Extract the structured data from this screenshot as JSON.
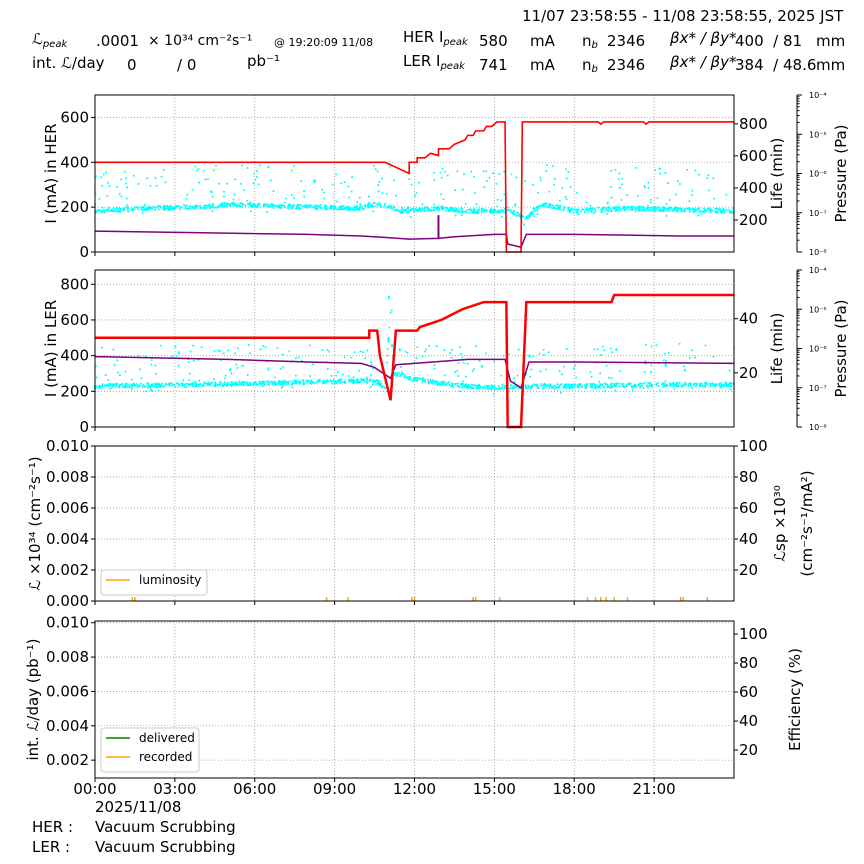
{
  "header": {
    "range": "11/07 23:58:55 - 11/08 23:58:55, 2025 JST",
    "lpeak_label": "ℒ",
    "lpeak_sub": "peak",
    "lpeak_value": ".0001",
    "lpeak_unit": "× 10³⁴ cm⁻²s⁻¹",
    "lpeak_time": "@ 19:20:09 11/08",
    "intl_label": "int. ℒ/day",
    "intl_value1": "0",
    "intl_value2": "/ 0",
    "intl_unit": "pb⁻¹",
    "her": {
      "label": "HER I",
      "sub": "peak",
      "current": "580",
      "unit": "mA",
      "nb_label": "n",
      "nb_sub": "b",
      "nb": "2346",
      "beta_label": "βx* / βy*",
      "beta": "400  / 81",
      "beta_unit": "mm"
    },
    "ler": {
      "label": "LER I",
      "sub": "peak",
      "current": "741",
      "unit": "mA",
      "nb_label": "n",
      "nb_sub": "b",
      "nb": "2346",
      "beta_label": "βx* / βy*",
      "beta": "384  / 48.6",
      "beta_unit": "mm"
    }
  },
  "footer": {
    "date": "2025/11/08",
    "her_label": "HER :",
    "her_status": "Vacuum Scrubbing",
    "ler_label": "LER :",
    "ler_status": "Vacuum Scrubbing"
  },
  "colors": {
    "current": "#ff0000",
    "life": "#800080",
    "pressure": "#00ffff",
    "lum": "#ffa500",
    "delivered": "#008000"
  },
  "chart_data": [
    {
      "type": "line",
      "name": "her",
      "ylabel": "I (mA) in HER",
      "ylim": [
        0,
        700
      ],
      "yticks": [
        0,
        200,
        400,
        600
      ],
      "y2label": "Life (min)",
      "y2lim": [
        0,
        980
      ],
      "y2ticks": [
        200,
        400,
        600,
        800
      ],
      "y3label": "Pressure (Pa)",
      "y3lim": [
        1e-08,
        0.0001
      ],
      "y3ticks": [
        "10⁻⁸",
        "10⁻⁷",
        "10⁻⁶",
        "10⁻⁵",
        "10⁻⁴"
      ],
      "xticks": [
        "00:00",
        "03:00",
        "06:00",
        "09:00",
        "12:00",
        "15:00",
        "18:00",
        "21:00"
      ],
      "xlim": [
        0,
        24
      ],
      "current": [
        [
          0,
          400
        ],
        [
          10.9,
          400
        ],
        [
          11.8,
          350
        ],
        [
          11.8,
          400
        ],
        [
          12.1,
          400
        ],
        [
          12.1,
          420
        ],
        [
          12.4,
          420
        ],
        [
          12.6,
          440
        ],
        [
          12.9,
          430
        ],
        [
          12.9,
          460
        ],
        [
          13.3,
          460
        ],
        [
          13.5,
          480
        ],
        [
          13.9,
          500
        ],
        [
          14.0,
          520
        ],
        [
          14.2,
          520
        ],
        [
          14.3,
          540
        ],
        [
          14.6,
          540
        ],
        [
          14.7,
          560
        ],
        [
          14.9,
          560
        ],
        [
          15.1,
          580
        ],
        [
          15.4,
          580
        ],
        [
          15.45,
          0
        ],
        [
          16.0,
          0
        ],
        [
          16.05,
          580
        ],
        [
          18.9,
          580
        ],
        [
          19.0,
          570
        ],
        [
          19.1,
          580
        ],
        [
          20.6,
          580
        ],
        [
          20.7,
          570
        ],
        [
          20.8,
          580
        ],
        [
          24,
          580
        ]
      ],
      "life": [
        [
          0,
          130
        ],
        [
          4,
          120
        ],
        [
          8,
          110
        ],
        [
          10,
          100
        ],
        [
          11,
          90
        ],
        [
          11.8,
          80
        ],
        [
          12.9,
          85
        ],
        [
          13.5,
          95
        ],
        [
          15.0,
          110
        ],
        [
          15.45,
          110
        ],
        [
          15.5,
          50
        ],
        [
          16.0,
          30
        ],
        [
          16.2,
          110
        ],
        [
          18,
          110
        ],
        [
          22,
          100
        ],
        [
          24,
          100
        ]
      ],
      "pressure": [
        [
          0,
          1.1e-07
        ],
        [
          2,
          1.3e-07
        ],
        [
          4,
          1.4e-07
        ],
        [
          5,
          1.6e-07
        ],
        [
          8,
          1.4e-07
        ],
        [
          10,
          1.3e-07
        ],
        [
          10.4,
          1.6e-07
        ],
        [
          11,
          1.5e-07
        ],
        [
          11.5,
          1.1e-07
        ],
        [
          12,
          1.2e-07
        ],
        [
          13,
          1.3e-07
        ],
        [
          14,
          1.1e-07
        ],
        [
          15.2,
          1.1e-07
        ],
        [
          15.5,
          1.2e-07
        ],
        [
          16.2,
          7e-08
        ],
        [
          16.8,
          1.7e-07
        ],
        [
          18,
          1.1e-07
        ],
        [
          20,
          1.3e-07
        ],
        [
          24,
          1.1e-07
        ]
      ]
    },
    {
      "type": "line",
      "name": "ler",
      "ylabel": "I (mA) in LER",
      "ylim": [
        0,
        880
      ],
      "yticks": [
        0,
        200,
        400,
        600,
        800
      ],
      "y2label": "Life (min)",
      "y2lim": [
        0,
        58
      ],
      "y2ticks": [
        20,
        40
      ],
      "y3label": "Pressure (Pa)",
      "y3lim": [
        1e-08,
        0.0001
      ],
      "y3ticks": [
        "10⁻⁸",
        "10⁻⁷",
        "10⁻⁶",
        "10⁻⁵",
        "10⁻⁴"
      ],
      "xlim": [
        0,
        24
      ],
      "current": [
        [
          0,
          500
        ],
        [
          10.3,
          500
        ],
        [
          10.3,
          540
        ],
        [
          10.6,
          540
        ],
        [
          10.7,
          400
        ],
        [
          11.1,
          150
        ],
        [
          11.3,
          540
        ],
        [
          12.1,
          540
        ],
        [
          12.2,
          560
        ],
        [
          12.6,
          580
        ],
        [
          13.0,
          600
        ],
        [
          13.4,
          630
        ],
        [
          13.8,
          660
        ],
        [
          14.2,
          680
        ],
        [
          14.6,
          700
        ],
        [
          15.45,
          700
        ],
        [
          15.5,
          0
        ],
        [
          16.0,
          0
        ],
        [
          16.2,
          700
        ],
        [
          19.4,
          700
        ],
        [
          19.5,
          740
        ],
        [
          24,
          740
        ]
      ],
      "life": [
        [
          0,
          26
        ],
        [
          5,
          25
        ],
        [
          8,
          24
        ],
        [
          10,
          23.5
        ],
        [
          10.5,
          22
        ],
        [
          11.1,
          18
        ],
        [
          11.3,
          23
        ],
        [
          12,
          23.5
        ],
        [
          14,
          25
        ],
        [
          15.4,
          25
        ],
        [
          15.6,
          17
        ],
        [
          16.0,
          14.5
        ],
        [
          16.3,
          24
        ],
        [
          18,
          24
        ],
        [
          24,
          23.5
        ]
      ],
      "pressure": [
        [
          0,
          1.1e-07
        ],
        [
          4,
          1.2e-07
        ],
        [
          8,
          1.4e-07
        ],
        [
          10,
          1.5e-07
        ],
        [
          10.5,
          1.5e-07
        ],
        [
          10.9,
          1e-07
        ],
        [
          11.1,
          1e-05
        ],
        [
          11.2,
          2.4e-07
        ],
        [
          12,
          1.6e-07
        ],
        [
          13,
          1.3e-07
        ],
        [
          14,
          1.1e-07
        ],
        [
          15.2,
          1e-07
        ],
        [
          16.2,
          1.1e-07
        ],
        [
          18,
          1.1e-07
        ],
        [
          21,
          1.2e-07
        ],
        [
          24,
          1.2e-07
        ]
      ]
    },
    {
      "type": "line",
      "name": "lum",
      "ylabel": "ℒ ×10³⁴ (cm⁻²s⁻¹)",
      "ylim": [
        0,
        0.01
      ],
      "yticks": [
        "0.000",
        "0.002",
        "0.004",
        "0.006",
        "0.008",
        "0.010"
      ],
      "y2label": "ℒsp ×10³⁰",
      "y2label2": "(cm⁻²s⁻¹/mA²)",
      "y2lim": [
        0,
        100
      ],
      "y2ticks": [
        20,
        40,
        60,
        80,
        100
      ],
      "legend": [
        "luminosity"
      ],
      "legend_loc": "lower-left",
      "luminosity": [
        [
          1.4,
          0.0001
        ],
        [
          1.5,
          0.0001
        ],
        [
          8.7,
          0.0001
        ],
        [
          9.5,
          0.0001
        ],
        [
          11.9,
          0.0001
        ],
        [
          12.0,
          0.0001
        ],
        [
          14.2,
          0.0001
        ],
        [
          14.3,
          0.0001
        ],
        [
          15.2,
          0.0001
        ],
        [
          18.5,
          0.0001
        ],
        [
          18.8,
          0.0001
        ],
        [
          19.0,
          0.0001
        ],
        [
          19.2,
          0.0001
        ],
        [
          19.5,
          0.0001
        ],
        [
          20.0,
          0.0001
        ],
        [
          22.0,
          0.0001
        ],
        [
          22.1,
          0.0001
        ],
        [
          23.0,
          0.0001
        ]
      ]
    },
    {
      "type": "line",
      "name": "intlum",
      "ylabel": "int. ℒ/day (pb⁻¹)",
      "ylim": [
        0.00096,
        0.0101
      ],
      "yticks": [
        "0.002",
        "0.004",
        "0.006",
        "0.008",
        "0.010"
      ],
      "y2label": "Efficiency (%)",
      "y2lim": [
        0.7,
        109
      ],
      "y2ticks": [
        20,
        40,
        60,
        80,
        100
      ],
      "legend": [
        "delivered",
        "recorded"
      ],
      "legend_loc": "lower-left",
      "xlabel_date": "2025/11/08",
      "xticks": [
        "00:00",
        "03:00",
        "06:00",
        "09:00",
        "12:00",
        "15:00",
        "18:00",
        "21:00"
      ]
    }
  ]
}
